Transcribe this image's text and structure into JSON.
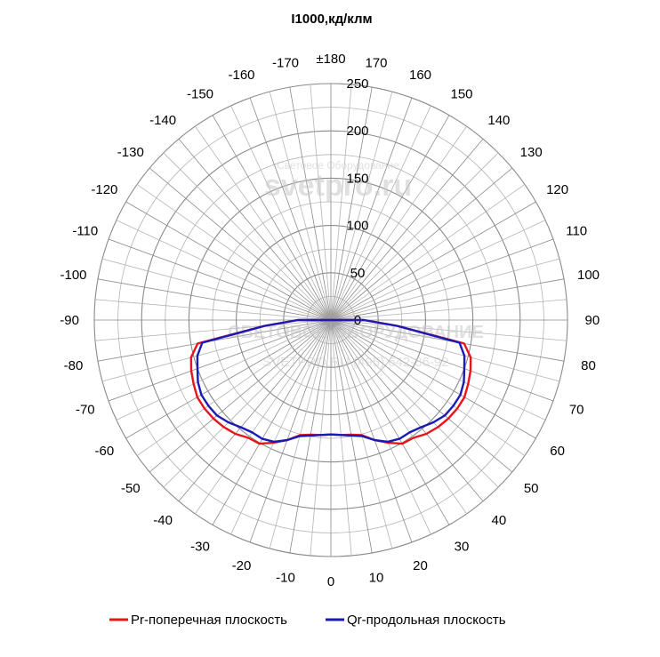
{
  "chart_data": {
    "type": "polar",
    "title": "I1000,кд/клм",
    "radial_ticks": [
      "0",
      "50",
      "100",
      "150",
      "200",
      "250"
    ],
    "r_max": 250,
    "angle_tick_labels": [
      "±180",
      "-170",
      "-160",
      "-150",
      "-140",
      "-130",
      "-120",
      "-110",
      "-100",
      "-90",
      "-80",
      "-70",
      "-60",
      "-50",
      "-40",
      "-30",
      "-20",
      "-10",
      "0",
      "10",
      "20",
      "30",
      "40",
      "50",
      "60",
      "70",
      "80",
      "90",
      "100",
      "110",
      "120",
      "130",
      "140",
      "150",
      "160",
      "170"
    ],
    "angle_tick_values": [
      180,
      -170,
      -160,
      -150,
      -140,
      -130,
      -120,
      -110,
      -100,
      -90,
      -80,
      -70,
      -60,
      -50,
      -40,
      -30,
      -20,
      -10,
      0,
      10,
      20,
      30,
      40,
      50,
      60,
      70,
      80,
      90,
      100,
      110,
      120,
      130,
      140,
      150,
      160,
      170
    ],
    "grid": true,
    "legend_position": "bottom",
    "watermark": {
      "line1": "Световое Оборудование",
      "line2": "svetpro.ru",
      "line3": "СВЕТОВОЕ ОБОРУДОВАНИЕ",
      "line4": "SVETPRO.RU (495) 642-86-92"
    },
    "series": [
      {
        "name": "Pr-поперечная плоскость",
        "color": "#e8141c",
        "angles": [
          -90,
          -85,
          -80,
          -75,
          -70,
          -65,
          -60,
          -55,
          -50,
          -45,
          -40,
          -35,
          -30,
          -25,
          -20,
          -15,
          -10,
          -5,
          0,
          5,
          10,
          15,
          20,
          25,
          30,
          35,
          40,
          45,
          50,
          55,
          60,
          65,
          70,
          75,
          80,
          85,
          90
        ],
        "values": [
          35,
          70,
          143,
          153,
          157,
          160,
          163,
          163,
          162,
          160,
          157,
          152,
          151,
          143,
          135,
          126,
          123,
          122,
          121,
          122,
          123,
          126,
          135,
          143,
          151,
          152,
          157,
          160,
          162,
          163,
          163,
          160,
          157,
          153,
          143,
          70,
          35
        ]
      },
      {
        "name": "Qr-продольная плоскость",
        "color": "#1a1ab4",
        "angles": [
          -90,
          -85,
          -80,
          -75,
          -70,
          -65,
          -60,
          -55,
          -50,
          -45,
          -40,
          -35,
          -30,
          -25,
          -20,
          -15,
          -10,
          -5,
          0,
          5,
          10,
          15,
          20,
          25,
          30,
          35,
          40,
          45,
          50,
          55,
          60,
          65,
          70,
          75,
          80,
          85,
          90
        ],
        "values": [
          35,
          70,
          138,
          146,
          150,
          155,
          158,
          158,
          157,
          153,
          148,
          145,
          145,
          142,
          135,
          127,
          124,
          122,
          121,
          122,
          124,
          127,
          135,
          142,
          145,
          145,
          148,
          153,
          157,
          158,
          158,
          155,
          150,
          146,
          138,
          70,
          35
        ]
      }
    ]
  }
}
